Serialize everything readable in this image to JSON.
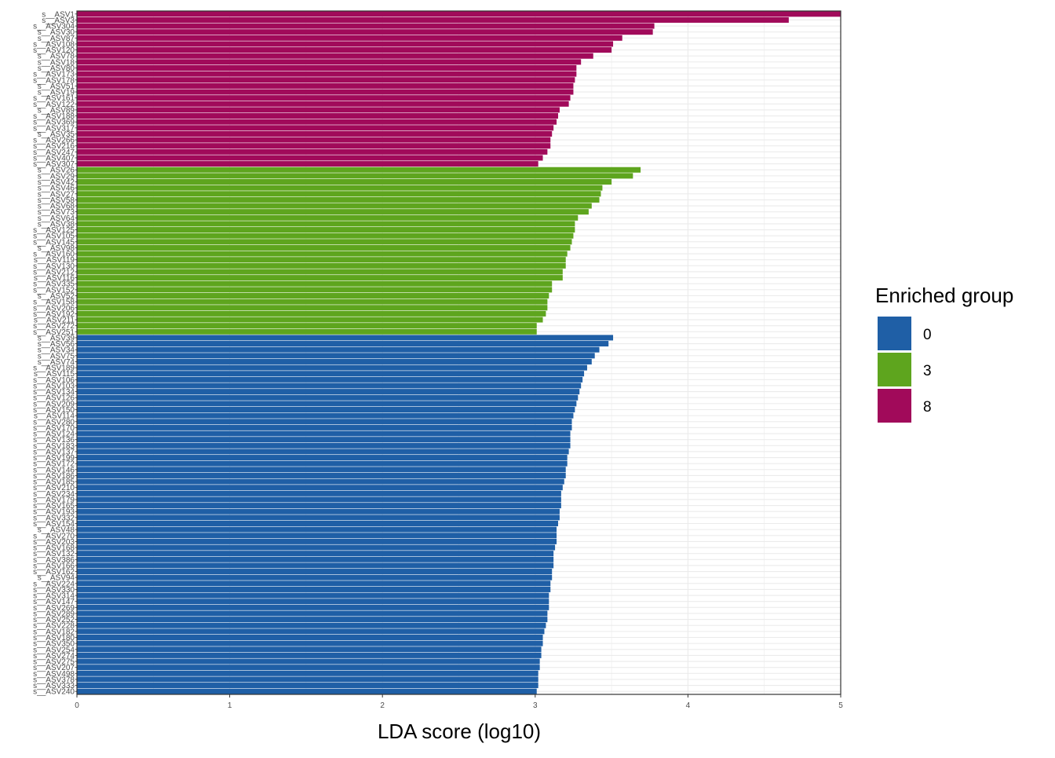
{
  "chart_data": {
    "type": "bar",
    "orientation": "horizontal",
    "title": "",
    "xlabel": "LDA score (log10)",
    "ylabel": "",
    "xlim": [
      0,
      5
    ],
    "x_ticks": [
      "0",
      "1",
      "2",
      "3",
      "4",
      "5"
    ],
    "grid": true,
    "legend": {
      "title": "Enriched group",
      "placement": "right",
      "entries": [
        {
          "label": "0",
          "color": "#1f5fa6"
        },
        {
          "label": "3",
          "color": "#5ea51e"
        },
        {
          "label": "8",
          "color": "#a10a5a"
        }
      ]
    },
    "series": [
      {
        "name": "8",
        "color": "#a10a5a",
        "bars": [
          {
            "label": "s__ASV1",
            "value": 5.0
          },
          {
            "label": "s__ASV3",
            "value": 4.66
          },
          {
            "label": "s__ASV304",
            "value": 3.78
          },
          {
            "label": "s__ASV30",
            "value": 3.77
          },
          {
            "label": "s__ASV87",
            "value": 3.57
          },
          {
            "label": "s__ASV108",
            "value": 3.51
          },
          {
            "label": "s__ASV120",
            "value": 3.5
          },
          {
            "label": "s__ASV78",
            "value": 3.38
          },
          {
            "label": "s__ASV18",
            "value": 3.3
          },
          {
            "label": "s__ASV80",
            "value": 3.27
          },
          {
            "label": "s__ASV173",
            "value": 3.27
          },
          {
            "label": "s__ASV178",
            "value": 3.26
          },
          {
            "label": "s__ASV51",
            "value": 3.25
          },
          {
            "label": "s__ASV19",
            "value": 3.25
          },
          {
            "label": "s__ASV161",
            "value": 3.23
          },
          {
            "label": "s__ASV122",
            "value": 3.22
          },
          {
            "label": "s__ASV89",
            "value": 3.16
          },
          {
            "label": "s__ASV188",
            "value": 3.15
          },
          {
            "label": "s__ASV369",
            "value": 3.14
          },
          {
            "label": "s__ASV317",
            "value": 3.12
          },
          {
            "label": "s__ASV35",
            "value": 3.11
          },
          {
            "label": "s__ASV266",
            "value": 3.1
          },
          {
            "label": "s__ASV216",
            "value": 3.1
          },
          {
            "label": "s__ASV247",
            "value": 3.08
          },
          {
            "label": "s__ASV407",
            "value": 3.05
          },
          {
            "label": "s__ASV307",
            "value": 3.02
          }
        ]
      },
      {
        "name": "3",
        "color": "#5ea51e",
        "bars": [
          {
            "label": "s__ASV26",
            "value": 3.69
          },
          {
            "label": "s__ASV29",
            "value": 3.64
          },
          {
            "label": "s__ASV42",
            "value": 3.5
          },
          {
            "label": "s__ASV46",
            "value": 3.44
          },
          {
            "label": "s__ASV27",
            "value": 3.43
          },
          {
            "label": "s__ASV58",
            "value": 3.42
          },
          {
            "label": "s__ASV68",
            "value": 3.37
          },
          {
            "label": "s__ASV73",
            "value": 3.35
          },
          {
            "label": "s__ASV64",
            "value": 3.28
          },
          {
            "label": "s__ASV38",
            "value": 3.26
          },
          {
            "label": "s__ASV125",
            "value": 3.26
          },
          {
            "label": "s__ASV105",
            "value": 3.25
          },
          {
            "label": "s__ASV145",
            "value": 3.24
          },
          {
            "label": "s__ASV98",
            "value": 3.23
          },
          {
            "label": "s__ASV160",
            "value": 3.21
          },
          {
            "label": "s__ASV119",
            "value": 3.2
          },
          {
            "label": "s__ASV130",
            "value": 3.2
          },
          {
            "label": "s__ASV212",
            "value": 3.18
          },
          {
            "label": "s__ASV116",
            "value": 3.18
          },
          {
            "label": "s__ASV335",
            "value": 3.11
          },
          {
            "label": "s__ASV152",
            "value": 3.11
          },
          {
            "label": "s__ASV52",
            "value": 3.09
          },
          {
            "label": "s__ASV158",
            "value": 3.08
          },
          {
            "label": "s__ASV206",
            "value": 3.08
          },
          {
            "label": "s__ASV192",
            "value": 3.07
          },
          {
            "label": "s__ASV211",
            "value": 3.05
          },
          {
            "label": "s__ASV272",
            "value": 3.01
          },
          {
            "label": "s__ASV251",
            "value": 3.01
          }
        ]
      },
      {
        "name": "0",
        "color": "#1f5fa6",
        "bars": [
          {
            "label": "s__ASV39",
            "value": 3.51
          },
          {
            "label": "s__ASV56",
            "value": 3.48
          },
          {
            "label": "s__ASV34",
            "value": 3.42
          },
          {
            "label": "s__ASV75",
            "value": 3.39
          },
          {
            "label": "s__ASV74",
            "value": 3.37
          },
          {
            "label": "s__ASV189",
            "value": 3.34
          },
          {
            "label": "s__ASV115",
            "value": 3.32
          },
          {
            "label": "s__ASV106",
            "value": 3.31
          },
          {
            "label": "s__ASV103",
            "value": 3.3
          },
          {
            "label": "s__ASV134",
            "value": 3.29
          },
          {
            "label": "s__ASV126",
            "value": 3.28
          },
          {
            "label": "s__ASV209",
            "value": 3.27
          },
          {
            "label": "s__ASV150",
            "value": 3.26
          },
          {
            "label": "s__ASV114",
            "value": 3.25
          },
          {
            "label": "s__ASV280",
            "value": 3.24
          },
          {
            "label": "s__ASV170",
            "value": 3.24
          },
          {
            "label": "s__ASV124",
            "value": 3.23
          },
          {
            "label": "s__ASV136",
            "value": 3.23
          },
          {
            "label": "s__ASV183",
            "value": 3.23
          },
          {
            "label": "s__ASV137",
            "value": 3.22
          },
          {
            "label": "s__ASV199",
            "value": 3.21
          },
          {
            "label": "s__ASV172",
            "value": 3.21
          },
          {
            "label": "s__ASV146",
            "value": 3.2
          },
          {
            "label": "s__ASV186",
            "value": 3.2
          },
          {
            "label": "s__ASV185",
            "value": 3.19
          },
          {
            "label": "s__ASV210",
            "value": 3.18
          },
          {
            "label": "s__ASV234",
            "value": 3.17
          },
          {
            "label": "s__ASV179",
            "value": 3.17
          },
          {
            "label": "s__ASV165",
            "value": 3.17
          },
          {
            "label": "s__ASV193",
            "value": 3.16
          },
          {
            "label": "s__ASV332",
            "value": 3.16
          },
          {
            "label": "s__ASV154",
            "value": 3.15
          },
          {
            "label": "s__ASV48",
            "value": 3.14
          },
          {
            "label": "s__ASV270",
            "value": 3.14
          },
          {
            "label": "s__ASV203",
            "value": 3.14
          },
          {
            "label": "s__ASV168",
            "value": 3.13
          },
          {
            "label": "s__ASV132",
            "value": 3.12
          },
          {
            "label": "s__ASV386",
            "value": 3.12
          },
          {
            "label": "s__ASV166",
            "value": 3.12
          },
          {
            "label": "s__ASV162",
            "value": 3.11
          },
          {
            "label": "s__ASV94",
            "value": 3.11
          },
          {
            "label": "s__ASV224",
            "value": 3.1
          },
          {
            "label": "s__ASV330",
            "value": 3.1
          },
          {
            "label": "s__ASV314",
            "value": 3.09
          },
          {
            "label": "s__ASV147",
            "value": 3.09
          },
          {
            "label": "s__ASV269",
            "value": 3.09
          },
          {
            "label": "s__ASV289",
            "value": 3.08
          },
          {
            "label": "s__ASV252",
            "value": 3.08
          },
          {
            "label": "s__ASV228",
            "value": 3.07
          },
          {
            "label": "s__ASV182",
            "value": 3.06
          },
          {
            "label": "s__ASV180",
            "value": 3.05
          },
          {
            "label": "s__ASV350",
            "value": 3.05
          },
          {
            "label": "s__ASV254",
            "value": 3.04
          },
          {
            "label": "s__ASV274",
            "value": 3.04
          },
          {
            "label": "s__ASV275",
            "value": 3.03
          },
          {
            "label": "s__ASV207",
            "value": 3.03
          },
          {
            "label": "s__ASV498",
            "value": 3.02
          },
          {
            "label": "s__ASV378",
            "value": 3.02
          },
          {
            "label": "s__ASV333",
            "value": 3.02
          },
          {
            "label": "s__ASV240",
            "value": 3.01
          }
        ]
      }
    ]
  }
}
